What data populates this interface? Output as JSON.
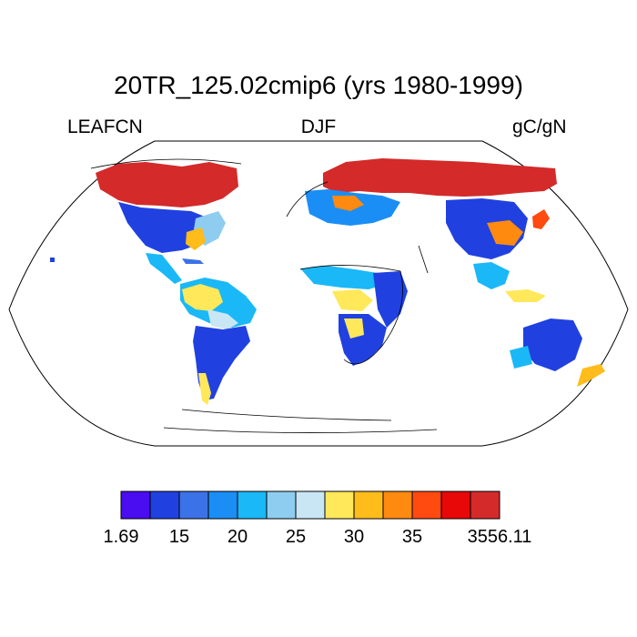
{
  "title": "20TR_125.02cmip6 (yrs 1980-1999)",
  "left_label": "LEAFCN",
  "center_label": "DJF",
  "right_label": "gC/gN",
  "colorbar": {
    "colors": [
      "#4a0df2",
      "#2041e0",
      "#3c72e8",
      "#1a8ef5",
      "#1ab8f7",
      "#8ecdf0",
      "#c9e6f5",
      "#ffe85a",
      "#ffbc1a",
      "#ff8a10",
      "#ff4a10",
      "#e80808",
      "#d42a2a"
    ],
    "tick_labels": [
      "1.69",
      "15",
      "20",
      "25",
      "30",
      "35",
      "3556.11"
    ],
    "tick_box_index": [
      0,
      2,
      4,
      6,
      8,
      10,
      13
    ]
  },
  "legend_palette_note": ""
}
